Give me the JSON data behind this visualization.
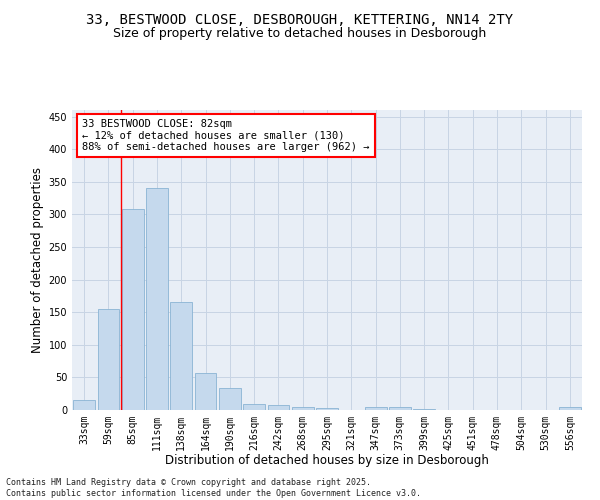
{
  "title_line1": "33, BESTWOOD CLOSE, DESBOROUGH, KETTERING, NN14 2TY",
  "title_line2": "Size of property relative to detached houses in Desborough",
  "xlabel": "Distribution of detached houses by size in Desborough",
  "ylabel": "Number of detached properties",
  "categories": [
    "33sqm",
    "59sqm",
    "85sqm",
    "111sqm",
    "138sqm",
    "164sqm",
    "190sqm",
    "216sqm",
    "242sqm",
    "268sqm",
    "295sqm",
    "321sqm",
    "347sqm",
    "373sqm",
    "399sqm",
    "425sqm",
    "451sqm",
    "478sqm",
    "504sqm",
    "530sqm",
    "556sqm"
  ],
  "values": [
    15,
    155,
    308,
    340,
    165,
    57,
    33,
    9,
    7,
    5,
    3,
    0,
    5,
    5,
    1,
    0,
    0,
    0,
    0,
    0,
    4
  ],
  "bar_color": "#c5d9ed",
  "bar_edge_color": "#8ab4d4",
  "vline_x": 1.5,
  "vline_color": "red",
  "annotation_text_line1": "33 BESTWOOD CLOSE: 82sqm",
  "annotation_text_line2": "← 12% of detached houses are smaller (130)",
  "annotation_text_line3": "88% of semi-detached houses are larger (962) →",
  "ylim": [
    0,
    460
  ],
  "yticks": [
    0,
    50,
    100,
    150,
    200,
    250,
    300,
    350,
    400,
    450
  ],
  "grid_color": "#c8d4e4",
  "bg_color": "#e8eef6",
  "footer_line1": "Contains HM Land Registry data © Crown copyright and database right 2025.",
  "footer_line2": "Contains public sector information licensed under the Open Government Licence v3.0.",
  "title_fontsize": 10,
  "subtitle_fontsize": 9,
  "axis_label_fontsize": 8.5,
  "tick_fontsize": 7,
  "annotation_fontsize": 7.5,
  "footer_fontsize": 6
}
